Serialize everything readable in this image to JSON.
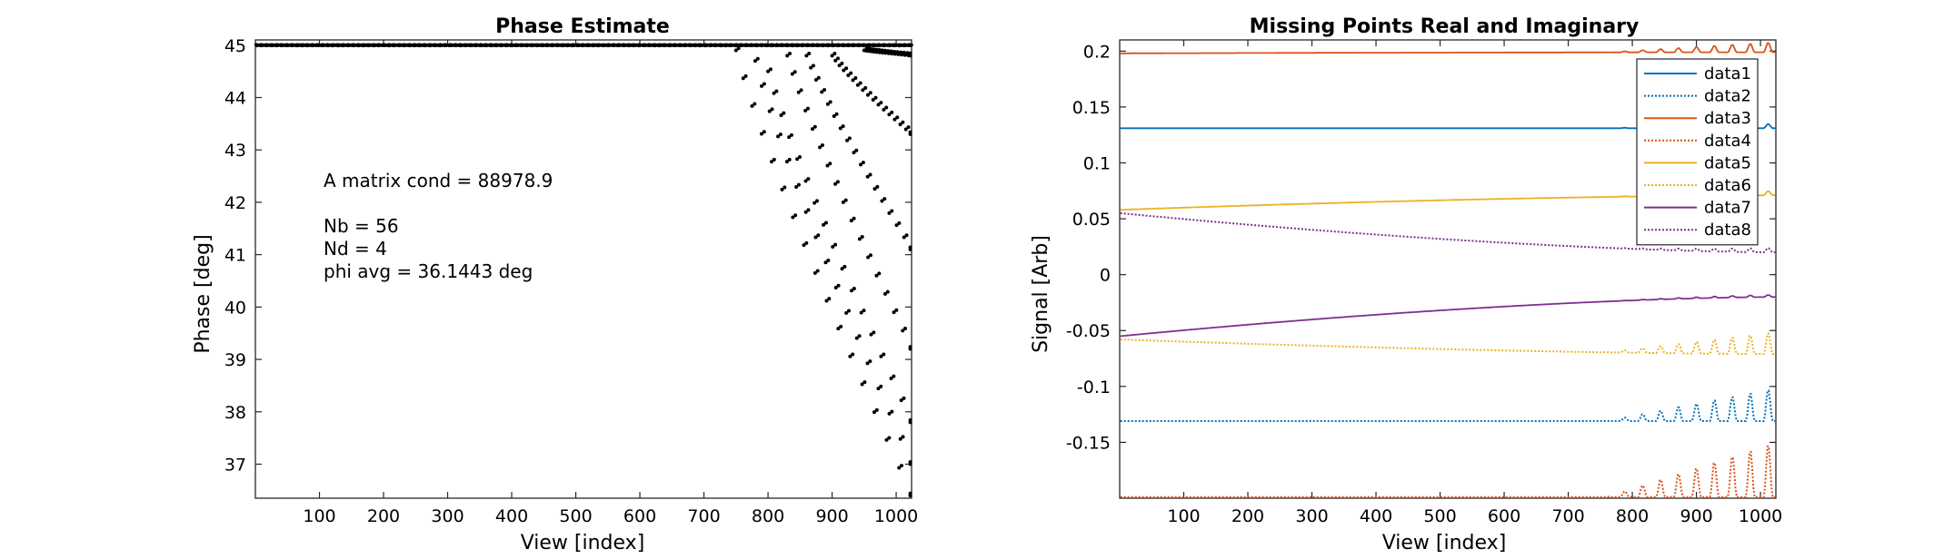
{
  "chart_data": [
    {
      "type": "scatter",
      "title": "Phase Estimate",
      "xlabel": "View [index]",
      "ylabel": "Phase [deg]",
      "xlim": [
        0,
        1024
      ],
      "ylim": [
        36.35,
        45.1
      ],
      "xticks": [
        100,
        200,
        300,
        400,
        500,
        600,
        700,
        800,
        900,
        1000
      ],
      "yticks": [
        37,
        38,
        39,
        40,
        41,
        42,
        43,
        44,
        45
      ],
      "marker_color": "#000000",
      "baseline_value": 45,
      "dip_trails": [
        {
          "start_x": 750,
          "end_x": 1024,
          "start_y": 44.9,
          "end_y": 36.4
        },
        {
          "start_x": 780,
          "end_x": 1024,
          "start_y": 44.7,
          "end_y": 37.0
        },
        {
          "start_x": 800,
          "end_x": 1024,
          "start_y": 44.5,
          "end_y": 37.8
        },
        {
          "start_x": 830,
          "end_x": 1024,
          "start_y": 44.8,
          "end_y": 39.2
        },
        {
          "start_x": 860,
          "end_x": 1024,
          "start_y": 44.8,
          "end_y": 41.1
        },
        {
          "start_x": 900,
          "end_x": 1024,
          "start_y": 44.8,
          "end_y": 43.3
        },
        {
          "start_x": 950,
          "end_x": 1024,
          "start_y": 44.9,
          "end_y": 44.8
        }
      ],
      "annotations": {
        "cond_label": "A matrix cond  =  88978.9",
        "cond_color": "#d95319",
        "nb_label": "Nb  =  56",
        "nd_label": "Nd  =  4",
        "phi_label": "phi avg  =  36.1443 deg"
      }
    },
    {
      "type": "line",
      "title": "Missing Points Real and Imaginary",
      "xlabel": "View [index]",
      "ylabel": "Signal [Arb]",
      "xlim": [
        0,
        1024
      ],
      "ylim": [
        -0.2,
        0.21
      ],
      "xticks": [
        100,
        200,
        300,
        400,
        500,
        600,
        700,
        800,
        900,
        1000
      ],
      "yticks": [
        -0.15,
        -0.1,
        -0.05,
        0,
        0.05,
        0.1,
        0.15,
        0.2
      ],
      "ytick_labels": [
        "-0.15",
        "-0.1",
        "-0.05",
        "0",
        "0.05",
        "0.1",
        "0.15",
        "0.2"
      ],
      "legend_placement": "top-right",
      "series": [
        {
          "name": "data1",
          "color": "#0072bd",
          "style": "solid",
          "start": 0.131,
          "end": 0.131,
          "osc_start_x": 760,
          "osc_amp": 0.004,
          "osc_dir": 1
        },
        {
          "name": "data2",
          "color": "#0072bd",
          "style": "dotted",
          "start": -0.131,
          "end": -0.131,
          "osc_start_x": 760,
          "osc_amp": 0.03,
          "osc_dir": 1
        },
        {
          "name": "data3",
          "color": "#d95319",
          "style": "solid",
          "start": 0.198,
          "end": 0.199,
          "osc_start_x": 760,
          "osc_amp": 0.009,
          "osc_dir": 1
        },
        {
          "name": "data4",
          "color": "#d95319",
          "style": "dotted",
          "start": -0.199,
          "end": -0.199,
          "osc_start_x": 760,
          "osc_amp": 0.05,
          "osc_dir": 1
        },
        {
          "name": "data5",
          "color": "#edb120",
          "style": "solid",
          "start": 0.058,
          "end": 0.071,
          "osc_start_x": 760,
          "osc_amp": 0.004,
          "osc_dir": 1
        },
        {
          "name": "data6",
          "color": "#edb120",
          "style": "dotted",
          "start": -0.058,
          "end": -0.071,
          "osc_start_x": 760,
          "osc_amp": 0.02,
          "osc_dir": 1
        },
        {
          "name": "data7",
          "color": "#7e2f8e",
          "style": "solid",
          "start": -0.055,
          "end": -0.02,
          "osc_start_x": 760,
          "osc_amp": 0.002,
          "osc_dir": 1
        },
        {
          "name": "data8",
          "color": "#7e2f8e",
          "style": "dotted",
          "start": 0.055,
          "end": 0.02,
          "osc_start_x": 760,
          "osc_amp": 0.004,
          "osc_dir": 1
        }
      ]
    }
  ]
}
